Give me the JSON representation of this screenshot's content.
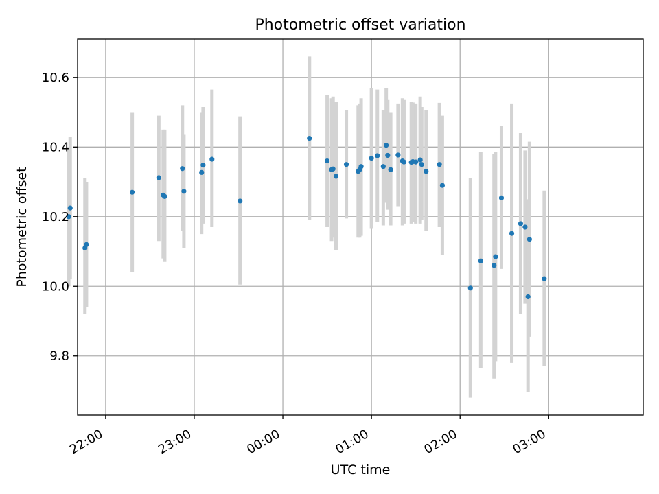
{
  "chart_data": {
    "type": "scatter",
    "title": "Photometric offset variation",
    "xlabel": "UTC time",
    "ylabel": "Photometric offset",
    "x_reference_date": "",
    "xlim_min": [
      -139,
      244
    ],
    "ylim": [
      9.63,
      10.71
    ],
    "grid": true,
    "x_ticks": [
      {
        "min": -120,
        "label": "22:00"
      },
      {
        "min": -60,
        "label": "23:00"
      },
      {
        "min": 0,
        "label": "00:00"
      },
      {
        "min": 60,
        "label": "01:00"
      },
      {
        "min": 120,
        "label": "02:00"
      },
      {
        "min": 180,
        "label": "03:00"
      }
    ],
    "y_ticks": [
      {
        "value": 9.8,
        "label": "9.8"
      },
      {
        "value": 10.0,
        "label": "10.0"
      },
      {
        "value": 10.2,
        "label": "10.2"
      },
      {
        "value": 10.4,
        "label": "10.4"
      },
      {
        "value": 10.6,
        "label": "10.6"
      }
    ],
    "series": [
      {
        "marker_color": "#1f77b4",
        "errorbar_color": "#d3d3d3",
        "points": [
          {
            "t": -145,
            "y": 10.2,
            "lo": 10.0,
            "hi": 10.4
          },
          {
            "t": -144,
            "y": 10.225,
            "lo": 10.02,
            "hi": 10.43
          },
          {
            "t": -134,
            "y": 10.11,
            "lo": 9.92,
            "hi": 10.31
          },
          {
            "t": -133,
            "y": 10.12,
            "lo": 9.94,
            "hi": 10.3
          },
          {
            "t": -102,
            "y": 10.27,
            "lo": 10.04,
            "hi": 10.5
          },
          {
            "t": -84,
            "y": 10.312,
            "lo": 10.13,
            "hi": 10.49
          },
          {
            "t": -81,
            "y": 10.262,
            "lo": 10.08,
            "hi": 10.45
          },
          {
            "t": -80,
            "y": 10.258,
            "lo": 10.07,
            "hi": 10.45
          },
          {
            "t": -68,
            "y": 10.338,
            "lo": 10.16,
            "hi": 10.52
          },
          {
            "t": -67,
            "y": 10.273,
            "lo": 10.11,
            "hi": 10.435
          },
          {
            "t": -55,
            "y": 10.327,
            "lo": 10.15,
            "hi": 10.5
          },
          {
            "t": -54,
            "y": 10.348,
            "lo": 10.18,
            "hi": 10.515
          },
          {
            "t": -48,
            "y": 10.365,
            "lo": 10.17,
            "hi": 10.565
          },
          {
            "t": -29,
            "y": 10.245,
            "lo": 10.005,
            "hi": 10.488
          },
          {
            "t": 18,
            "y": 10.425,
            "lo": 10.19,
            "hi": 10.66
          },
          {
            "t": 30,
            "y": 10.36,
            "lo": 10.17,
            "hi": 10.55
          },
          {
            "t": 33,
            "y": 10.335,
            "lo": 10.13,
            "hi": 10.54
          },
          {
            "t": 34,
            "y": 10.337,
            "lo": 10.14,
            "hi": 10.545
          },
          {
            "t": 36,
            "y": 10.316,
            "lo": 10.105,
            "hi": 10.53
          },
          {
            "t": 43,
            "y": 10.35,
            "lo": 10.195,
            "hi": 10.505
          },
          {
            "t": 51,
            "y": 10.33,
            "lo": 10.14,
            "hi": 10.52
          },
          {
            "t": 52,
            "y": 10.335,
            "lo": 10.14,
            "hi": 10.525
          },
          {
            "t": 53,
            "y": 10.344,
            "lo": 10.145,
            "hi": 10.54
          },
          {
            "t": 60,
            "y": 10.368,
            "lo": 10.165,
            "hi": 10.57
          },
          {
            "t": 64,
            "y": 10.375,
            "lo": 10.185,
            "hi": 10.565
          },
          {
            "t": 68,
            "y": 10.344,
            "lo": 10.175,
            "hi": 10.505
          },
          {
            "t": 70,
            "y": 10.405,
            "lo": 10.24,
            "hi": 10.57
          },
          {
            "t": 71,
            "y": 10.376,
            "lo": 10.22,
            "hi": 10.535
          },
          {
            "t": 73,
            "y": 10.335,
            "lo": 10.175,
            "hi": 10.5
          },
          {
            "t": 78,
            "y": 10.377,
            "lo": 10.23,
            "hi": 10.525
          },
          {
            "t": 81,
            "y": 10.36,
            "lo": 10.175,
            "hi": 10.54
          },
          {
            "t": 82,
            "y": 10.357,
            "lo": 10.18,
            "hi": 10.535
          },
          {
            "t": 87,
            "y": 10.356,
            "lo": 10.18,
            "hi": 10.53
          },
          {
            "t": 88,
            "y": 10.358,
            "lo": 10.185,
            "hi": 10.528
          },
          {
            "t": 90,
            "y": 10.357,
            "lo": 10.18,
            "hi": 10.525
          },
          {
            "t": 93,
            "y": 10.363,
            "lo": 10.18,
            "hi": 10.545
          },
          {
            "t": 94,
            "y": 10.35,
            "lo": 10.19,
            "hi": 10.515
          },
          {
            "t": 97,
            "y": 10.33,
            "lo": 10.16,
            "hi": 10.505
          },
          {
            "t": 106,
            "y": 10.35,
            "lo": 10.17,
            "hi": 10.527
          },
          {
            "t": 108,
            "y": 10.29,
            "lo": 10.09,
            "hi": 10.49
          },
          {
            "t": 127,
            "y": 9.995,
            "lo": 9.68,
            "hi": 10.31
          },
          {
            "t": 134,
            "y": 10.073,
            "lo": 9.765,
            "hi": 10.385
          },
          {
            "t": 143,
            "y": 10.06,
            "lo": 9.735,
            "hi": 10.38
          },
          {
            "t": 144,
            "y": 10.085,
            "lo": 9.785,
            "hi": 10.385
          },
          {
            "t": 148,
            "y": 10.254,
            "lo": 10.05,
            "hi": 10.46
          },
          {
            "t": 155,
            "y": 10.152,
            "lo": 9.78,
            "hi": 10.525
          },
          {
            "t": 161,
            "y": 10.18,
            "lo": 9.92,
            "hi": 10.44
          },
          {
            "t": 164,
            "y": 10.17,
            "lo": 9.95,
            "hi": 10.39
          },
          {
            "t": 166,
            "y": 9.97,
            "lo": 9.695,
            "hi": 10.25
          },
          {
            "t": 167,
            "y": 10.135,
            "lo": 9.855,
            "hi": 10.415
          },
          {
            "t": 177,
            "y": 10.022,
            "lo": 9.772,
            "hi": 10.275
          }
        ]
      }
    ]
  }
}
